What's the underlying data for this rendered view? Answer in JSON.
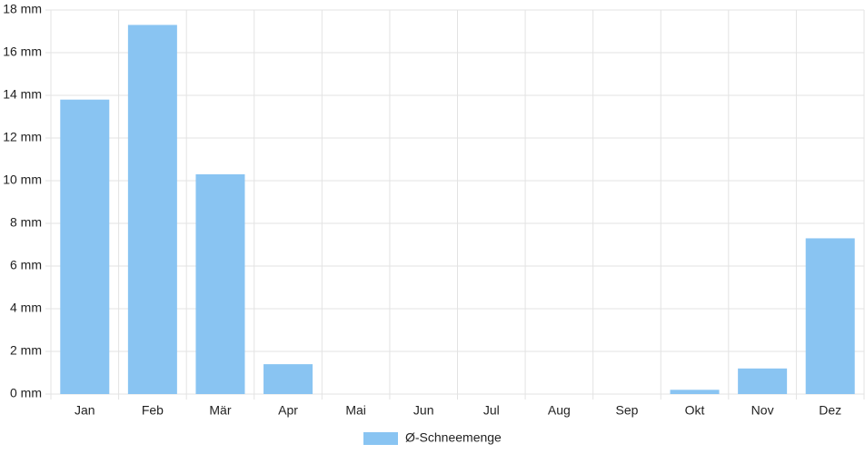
{
  "chart_data": {
    "type": "bar",
    "categories": [
      "Jan",
      "Feb",
      "Mär",
      "Apr",
      "Mai",
      "Jun",
      "Jul",
      "Aug",
      "Sep",
      "Okt",
      "Nov",
      "Dez"
    ],
    "series": [
      {
        "name": "Ø-Schneemenge",
        "color": "#89c4f2",
        "values": [
          13.8,
          17.3,
          10.3,
          1.4,
          0,
          0,
          0,
          0,
          0,
          0.2,
          1.2,
          7.3
        ]
      }
    ],
    "ylim": [
      0,
      18
    ],
    "yticks": [
      {
        "value": 0,
        "label": "0 mm"
      },
      {
        "value": 2,
        "label": "2 mm"
      },
      {
        "value": 4,
        "label": "4 mm"
      },
      {
        "value": 6,
        "label": "6 mm"
      },
      {
        "value": 8,
        "label": "8 mm"
      },
      {
        "value": 10,
        "label": "10 mm"
      },
      {
        "value": 12,
        "label": "12 mm"
      },
      {
        "value": 14,
        "label": "14 mm"
      },
      {
        "value": 16,
        "label": "16 mm"
      },
      {
        "value": 18,
        "label": "18 mm"
      }
    ],
    "grid": true,
    "legend": "bottom"
  }
}
